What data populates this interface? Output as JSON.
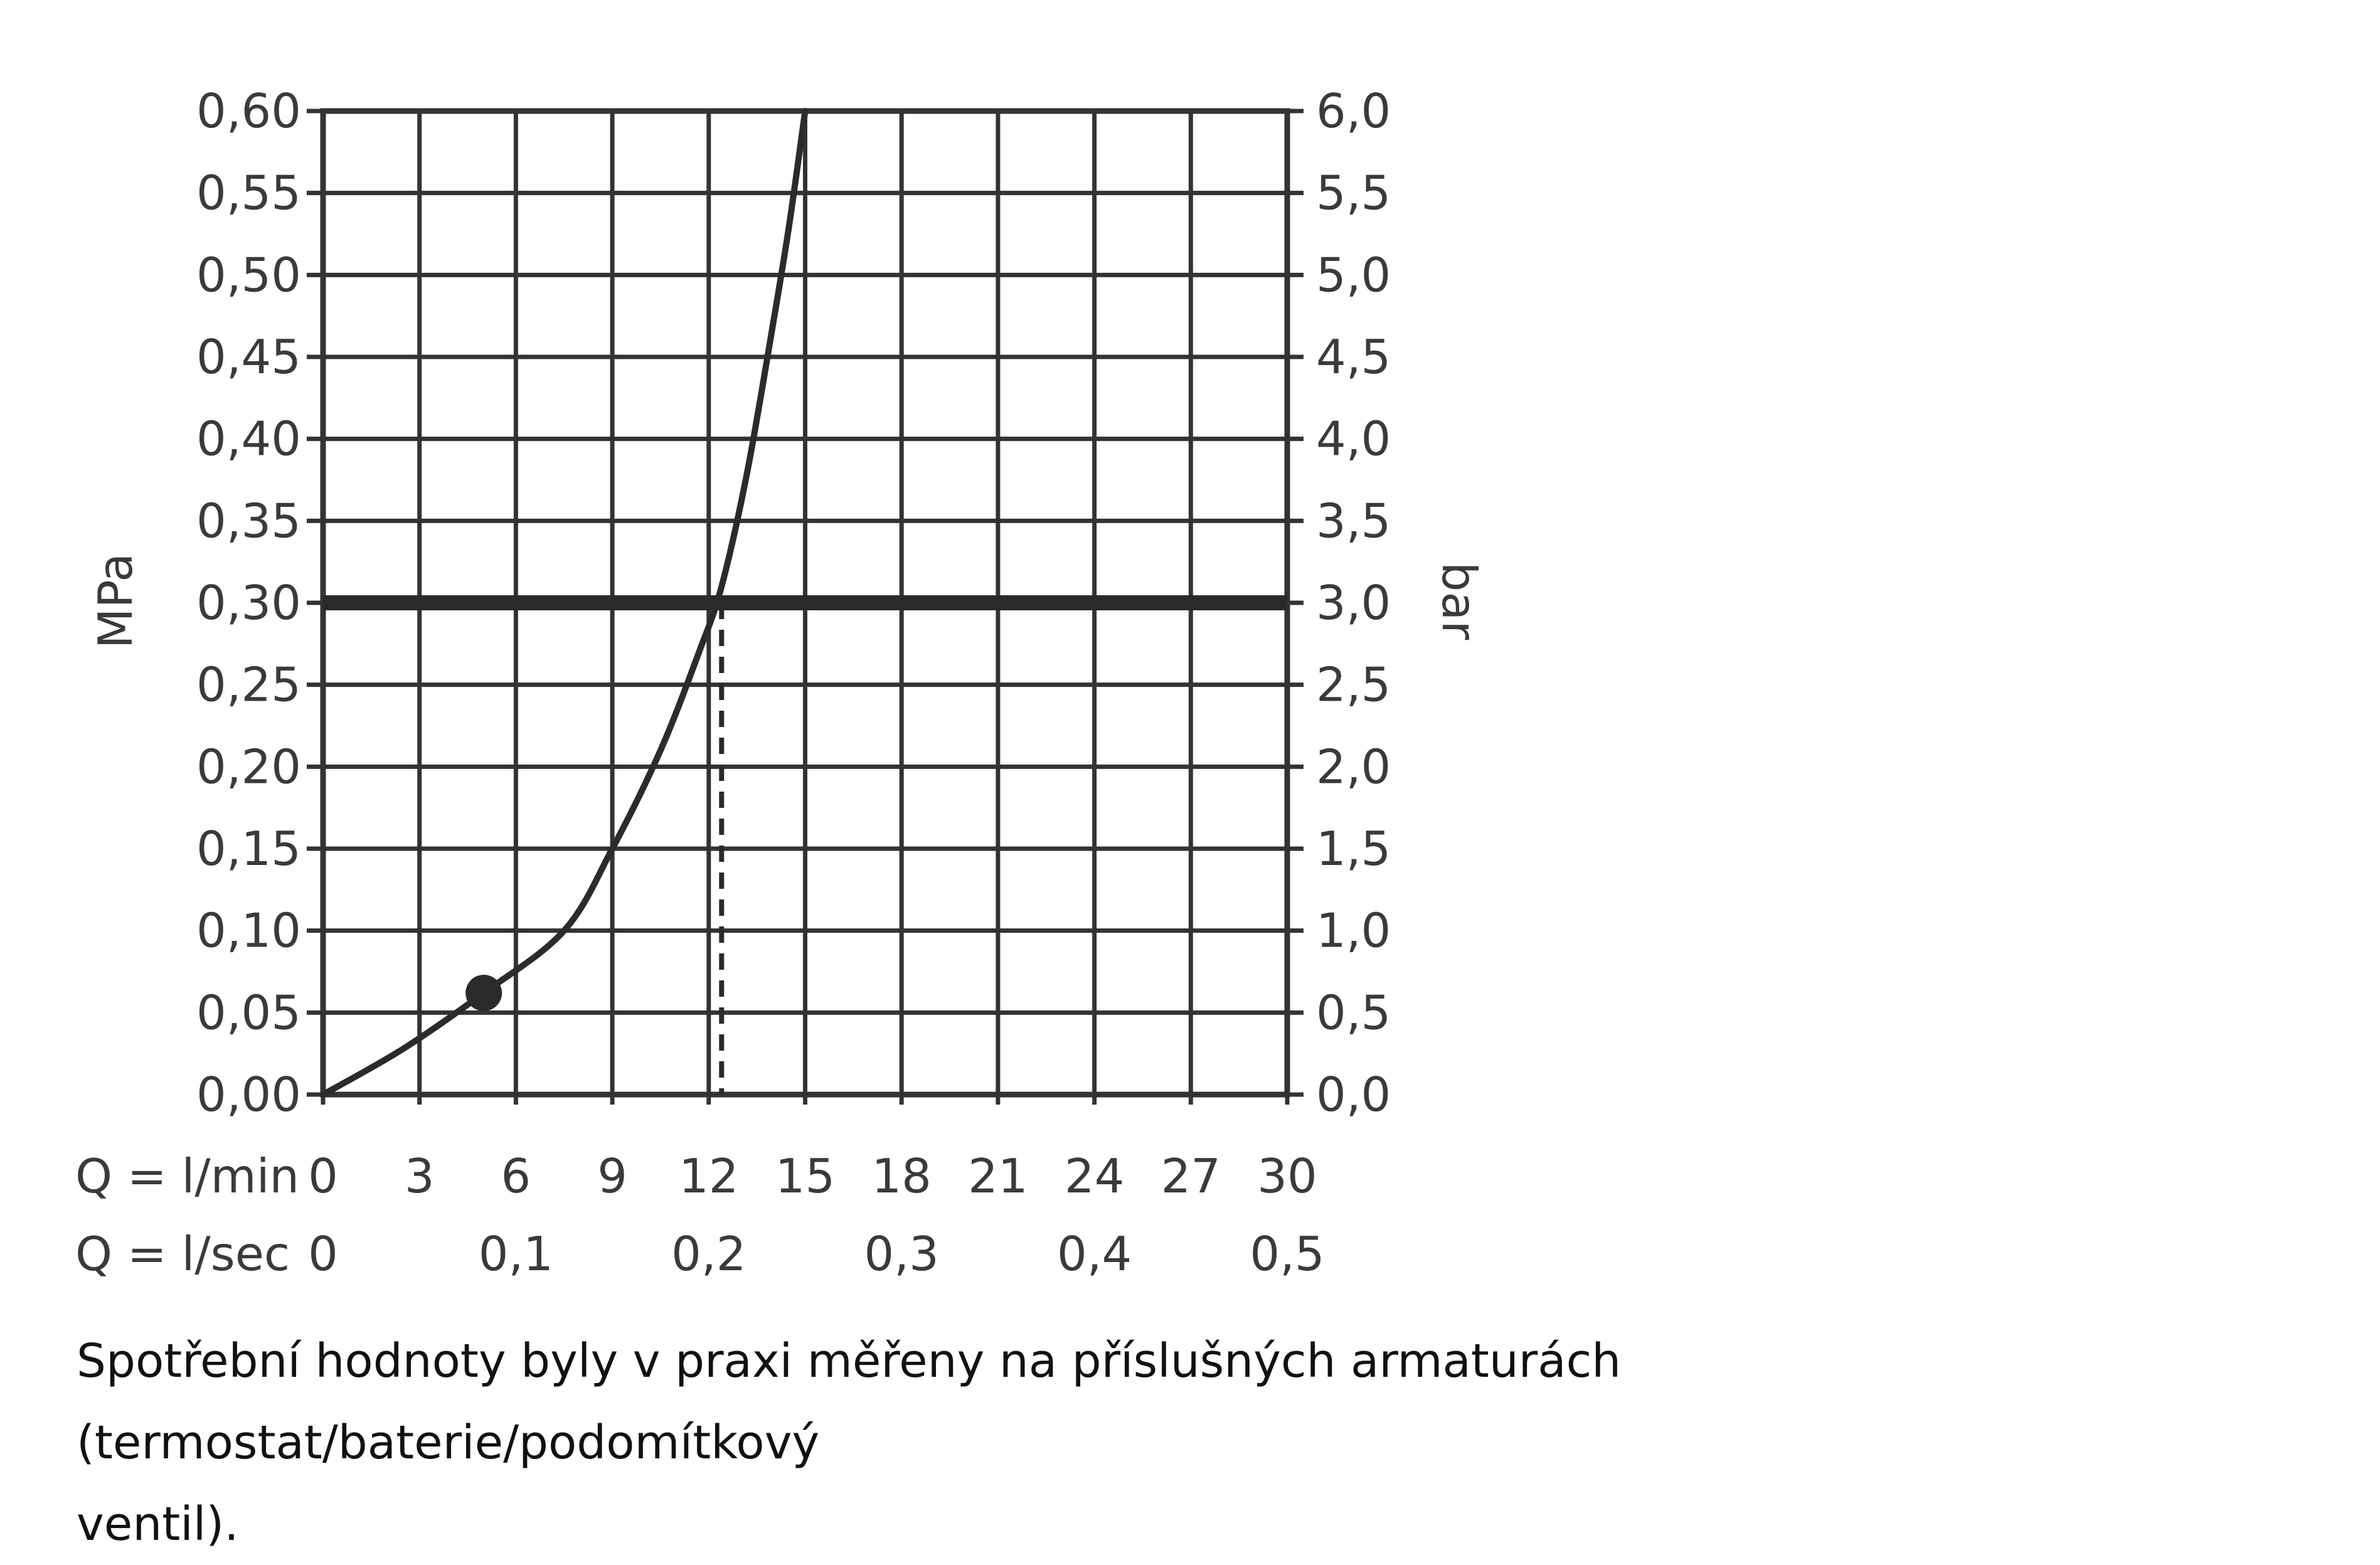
{
  "chart_data": {
    "type": "line",
    "title": "",
    "ylabel_left": "MPa",
    "ylabel_right": "bar",
    "y_left_ticks": [
      "0,00",
      "0,05",
      "0,10",
      "0,15",
      "0,20",
      "0,25",
      "0,30",
      "0,35",
      "0,40",
      "0,45",
      "0,50",
      "0,55",
      "0,60"
    ],
    "y_right_ticks": [
      "0,0",
      "0,5",
      "1,0",
      "1,5",
      "2,0",
      "2,5",
      "3,0",
      "3,5",
      "4,0",
      "4,5",
      "5,0",
      "5,5",
      "6,0"
    ],
    "ylim": [
      0,
      0.6
    ],
    "x_row1_label": "Q = l/min",
    "x_row1_ticks": [
      {
        "v": 0,
        "t": "0"
      },
      {
        "v": 3,
        "t": "3"
      },
      {
        "v": 6,
        "t": "6"
      },
      {
        "v": 9,
        "t": "9"
      },
      {
        "v": 12,
        "t": "12"
      },
      {
        "v": 15,
        "t": "15"
      },
      {
        "v": 18,
        "t": "18"
      },
      {
        "v": 21,
        "t": "21"
      },
      {
        "v": 24,
        "t": "24"
      },
      {
        "v": 27,
        "t": "27"
      },
      {
        "v": 30,
        "t": "30"
      }
    ],
    "x_row2_label": "Q = l/sec",
    "x_row2_ticks": [
      {
        "v": 0,
        "t": "0"
      },
      {
        "v": 6,
        "t": "0,1"
      },
      {
        "v": 12,
        "t": "0,2"
      },
      {
        "v": 18,
        "t": "0,3"
      },
      {
        "v": 24,
        "t": "0,4"
      },
      {
        "v": 30,
        "t": "0,5"
      }
    ],
    "xlim": [
      0,
      30
    ],
    "grid": true,
    "series": [
      {
        "values": [
          {
            "x": 0,
            "y": 0.0
          },
          {
            "x": 2.5,
            "y": 0.028
          },
          {
            "x": 5.0,
            "y": 0.062
          },
          {
            "x": 7.5,
            "y": 0.1
          },
          {
            "x": 9.0,
            "y": 0.15
          },
          {
            "x": 10.5,
            "y": 0.21
          },
          {
            "x": 11.7,
            "y": 0.27
          },
          {
            "x": 12.4,
            "y": 0.31
          },
          {
            "x": 13.2,
            "y": 0.38
          },
          {
            "x": 14.0,
            "y": 0.47
          },
          {
            "x": 14.5,
            "y": 0.53
          },
          {
            "x": 15.0,
            "y": 0.6
          }
        ]
      }
    ],
    "reference_line_y": 0.3,
    "reference_drop_x": 12.4,
    "marker_point": {
      "x": 5.0,
      "y": 0.062
    }
  },
  "footnote": {
    "line1": "Spotřební hodnoty byly v praxi měřeny na příslušných armaturách (termostat/baterie/podomítkový",
    "line2": "ventil)."
  },
  "colors": {
    "grid": "#333333",
    "curve": "#2b2b2b",
    "text": "#3a3a3a"
  }
}
